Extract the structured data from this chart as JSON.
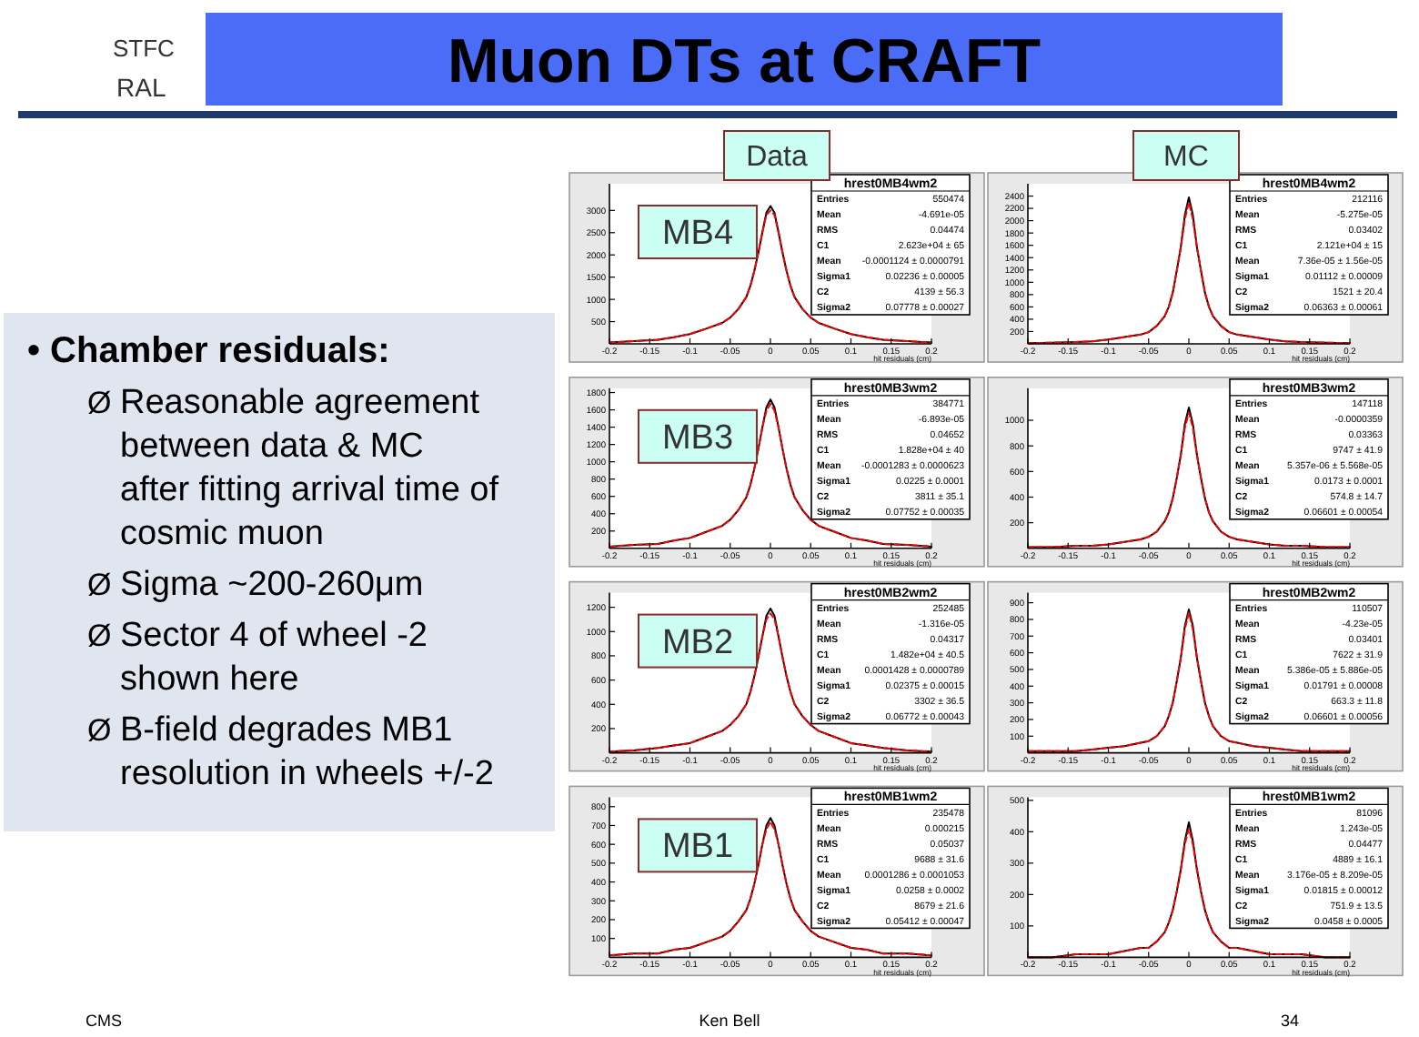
{
  "chart_data": [
    {
      "type": "other",
      "title": "Muon DTs at CRAFT",
      "annotations": [
        "STFC",
        "RAL",
        "• Chamber residuals:",
        "ØReasonable agreement\nbetween data & MC\nafter fitting arrival time of\ncosmic muon",
        "ØSigma ~200-260μm",
        "ØSector 4 of wheel -2\nshown here",
        "ØB-field degrades MB1\nresolution in wheels +/-2",
        "Data",
        "MC",
        "CMS",
        "Ken Bell",
        "34"
      ]
    },
    {
      "type": "line",
      "title": "hrest0MB4wm2",
      "subtitle": "MB4",
      "xlabel": "hit residuals (cm)",
      "x": [
        -0.2,
        -0.17,
        -0.14,
        -0.12,
        -0.1,
        -0.08,
        -0.06,
        -0.05,
        -0.04,
        -0.03,
        -0.025,
        -0.02,
        -0.015,
        -0.01,
        -0.005,
        0,
        0.005,
        0.01,
        0.015,
        0.02,
        0.025,
        0.03,
        0.04,
        0.05,
        0.06,
        0.08,
        0.1,
        0.12,
        0.14,
        0.17,
        0.2
      ],
      "series": [
        {
          "color": "#000000",
          "values": [
            30,
            60,
            90,
            150,
            220,
            340,
            470,
            590,
            780,
            1050,
            1300,
            1640,
            2050,
            2510,
            2950,
            3100,
            2950,
            2510,
            2050,
            1640,
            1300,
            1050,
            780,
            590,
            470,
            340,
            220,
            150,
            90,
            60,
            30
          ]
        },
        {
          "color": "#ff0000",
          "line_style": "dashed",
          "values": [
            30,
            60,
            90,
            150,
            220,
            340,
            470,
            590,
            780,
            1050,
            1300,
            1640,
            2050,
            2510,
            2900,
            3000,
            2900,
            2510,
            2050,
            1640,
            1300,
            1050,
            780,
            590,
            470,
            340,
            220,
            150,
            90,
            60,
            30
          ]
        }
      ],
      "xlim": [
        -0.2,
        0.2
      ],
      "xticks": [
        -0.2,
        -0.15,
        -0.1,
        -0.05,
        0,
        0.05,
        0.1,
        0.15,
        0.2
      ],
      "ylim": [
        0,
        3600
      ],
      "yticks": [
        500,
        1000,
        1500,
        2000,
        2500,
        3000
      ],
      "annotations": [
        "Entries 550474",
        "Mean -4.691e-05",
        "RMS 0.04474",
        "C1 2.623e+04 ± 65",
        "Mean -0.0001124 ± 0.0000791",
        "Sigma1 0.02236 ± 0.00005",
        "C2 4139 ± 56.3",
        "Sigma2 0.07778 ± 0.00027"
      ]
    },
    {
      "type": "line",
      "title": "hrest0MB4wm2",
      "xlabel": "hit residuals (cm)",
      "x": [
        -0.2,
        -0.17,
        -0.14,
        -0.12,
        -0.1,
        -0.08,
        -0.06,
        -0.05,
        -0.04,
        -0.03,
        -0.025,
        -0.02,
        -0.015,
        -0.01,
        -0.005,
        0,
        0.005,
        0.01,
        0.015,
        0.02,
        0.025,
        0.03,
        0.04,
        0.05,
        0.06,
        0.08,
        0.1,
        0.12,
        0.14,
        0.17,
        0.2
      ],
      "series": [
        {
          "color": "#000000",
          "values": [
            10,
            20,
            30,
            40,
            70,
            110,
            150,
            190,
            290,
            450,
            600,
            830,
            1190,
            1570,
            2090,
            2380,
            2090,
            1570,
            1190,
            830,
            600,
            450,
            290,
            190,
            150,
            110,
            70,
            40,
            30,
            20,
            10
          ]
        },
        {
          "color": "#ff0000",
          "line_style": "dashed",
          "values": [
            10,
            20,
            30,
            40,
            70,
            110,
            150,
            190,
            290,
            450,
            600,
            830,
            1190,
            1570,
            2020,
            2300,
            2020,
            1570,
            1190,
            830,
            600,
            450,
            290,
            190,
            150,
            110,
            70,
            40,
            30,
            20,
            10
          ]
        }
      ],
      "xlim": [
        -0.2,
        0.2
      ],
      "xticks": [
        -0.2,
        -0.15,
        -0.1,
        -0.05,
        0,
        0.05,
        0.1,
        0.15,
        0.2
      ],
      "ylim": [
        0,
        2600
      ],
      "yticks": [
        200,
        400,
        600,
        800,
        1000,
        1200,
        1400,
        1600,
        1800,
        2000,
        2200,
        2400
      ],
      "annotations": [
        "Entries 212116",
        "Mean -5.275e-05",
        "RMS 0.03402",
        "C1 2.121e+04 ± 15",
        "Mean 7.36e-05 ± 1.56e-05",
        "Sigma1 0.01112 ± 0.00009",
        "C2 1521 ± 20.4",
        "Sigma2 0.06363 ± 0.00061"
      ]
    },
    {
      "type": "line",
      "title": "hrest0MB3wm2",
      "subtitle": "MB3",
      "xlabel": "hit residuals (cm)",
      "x": [
        -0.2,
        -0.17,
        -0.14,
        -0.12,
        -0.1,
        -0.08,
        -0.06,
        -0.05,
        -0.04,
        -0.03,
        -0.025,
        -0.02,
        -0.015,
        -0.01,
        -0.005,
        0,
        0.005,
        0.01,
        0.015,
        0.02,
        0.025,
        0.03,
        0.04,
        0.05,
        0.06,
        0.08,
        0.1,
        0.12,
        0.14,
        0.17,
        0.2
      ],
      "series": [
        {
          "color": "#000000",
          "values": [
            20,
            40,
            50,
            90,
            120,
            190,
            260,
            330,
            440,
            590,
            730,
            920,
            1150,
            1400,
            1630,
            1720,
            1630,
            1400,
            1150,
            920,
            730,
            590,
            440,
            330,
            260,
            190,
            120,
            90,
            50,
            40,
            20
          ]
        },
        {
          "color": "#ff0000",
          "line_style": "dashed",
          "values": [
            20,
            40,
            50,
            90,
            120,
            190,
            260,
            330,
            440,
            590,
            730,
            920,
            1150,
            1400,
            1590,
            1670,
            1590,
            1400,
            1150,
            920,
            730,
            590,
            440,
            330,
            260,
            190,
            120,
            90,
            50,
            40,
            20
          ]
        }
      ],
      "xlim": [
        -0.2,
        0.2
      ],
      "xticks": [
        -0.2,
        -0.15,
        -0.1,
        -0.05,
        0,
        0.05,
        0.1,
        0.15,
        0.2
      ],
      "ylim": [
        0,
        1850
      ],
      "yticks": [
        200,
        400,
        600,
        800,
        1000,
        1200,
        1400,
        1600,
        1800
      ],
      "annotations": [
        "Entries 384771",
        "Mean -6.893e-05",
        "RMS 0.04652",
        "C1 1.828e+04 ± 40",
        "Mean -0.0001283 ± 0.0000623",
        "Sigma1 0.0225 ± 0.0001",
        "C2 3811 ± 35.1",
        "Sigma2 0.07752 ± 0.00035"
      ]
    },
    {
      "type": "line",
      "title": "hrest0MB3wm2",
      "xlabel": "hit residuals (cm)",
      "x": [
        -0.2,
        -0.17,
        -0.14,
        -0.12,
        -0.1,
        -0.08,
        -0.06,
        -0.05,
        -0.04,
        -0.03,
        -0.025,
        -0.02,
        -0.015,
        -0.01,
        -0.005,
        0,
        0.005,
        0.01,
        0.015,
        0.02,
        0.025,
        0.03,
        0.04,
        0.05,
        0.06,
        0.08,
        0.1,
        0.12,
        0.14,
        0.17,
        0.2
      ],
      "series": [
        {
          "color": "#000000",
          "values": [
            10,
            10,
            20,
            20,
            30,
            50,
            70,
            90,
            130,
            210,
            280,
            390,
            550,
            730,
            970,
            1100,
            970,
            730,
            550,
            390,
            280,
            210,
            130,
            90,
            70,
            50,
            30,
            20,
            20,
            10,
            10
          ]
        },
        {
          "color": "#ff0000",
          "line_style": "dashed",
          "values": [
            10,
            10,
            20,
            20,
            30,
            50,
            70,
            90,
            130,
            210,
            280,
            390,
            550,
            730,
            940,
            1060,
            940,
            730,
            550,
            390,
            280,
            210,
            130,
            90,
            70,
            50,
            30,
            20,
            20,
            10,
            10
          ]
        }
      ],
      "xlim": [
        -0.2,
        0.2
      ],
      "xticks": [
        -0.2,
        -0.15,
        -0.1,
        -0.05,
        0,
        0.05,
        0.1,
        0.15,
        0.2
      ],
      "ylim": [
        0,
        1250
      ],
      "yticks": [
        200,
        400,
        600,
        800,
        1000
      ],
      "annotations": [
        "Entries 147118",
        "Mean -0.0000359",
        "RMS 0.03363",
        "C1 9747 ± 41.9",
        "Mean 5.357e-06 ± 5.568e-05",
        "Sigma1 0.0173 ± 0.0001",
        "C2 574.8 ± 14.7",
        "Sigma2 0.06601 ± 0.00054"
      ]
    },
    {
      "type": "line",
      "title": "hrest0MB2wm2",
      "subtitle": "MB2",
      "xlabel": "hit residuals (cm)",
      "x": [
        -0.2,
        -0.17,
        -0.14,
        -0.12,
        -0.1,
        -0.08,
        -0.06,
        -0.05,
        -0.04,
        -0.03,
        -0.025,
        -0.02,
        -0.015,
        -0.01,
        -0.005,
        0,
        0.005,
        0.01,
        0.015,
        0.02,
        0.025,
        0.03,
        0.04,
        0.05,
        0.06,
        0.08,
        0.1,
        0.12,
        0.14,
        0.17,
        0.2
      ],
      "series": [
        {
          "color": "#000000",
          "values": [
            10,
            20,
            40,
            60,
            80,
            130,
            180,
            230,
            300,
            400,
            500,
            630,
            790,
            960,
            1130,
            1190,
            1130,
            960,
            790,
            630,
            500,
            400,
            300,
            230,
            180,
            130,
            80,
            60,
            40,
            20,
            10
          ]
        },
        {
          "color": "#ff0000",
          "line_style": "dashed",
          "values": [
            10,
            20,
            40,
            60,
            80,
            130,
            180,
            230,
            300,
            400,
            500,
            630,
            790,
            960,
            1100,
            1150,
            1100,
            960,
            790,
            630,
            500,
            400,
            300,
            230,
            180,
            130,
            80,
            60,
            40,
            20,
            10
          ]
        }
      ],
      "xlim": [
        -0.2,
        0.2
      ],
      "xticks": [
        -0.2,
        -0.15,
        -0.1,
        -0.05,
        0,
        0.05,
        0.1,
        0.15,
        0.2
      ],
      "ylim": [
        0,
        1320
      ],
      "yticks": [
        200,
        400,
        600,
        800,
        1000,
        1200
      ],
      "annotations": [
        "Entries 252485",
        "Mean -1.316e-05",
        "RMS 0.04317",
        "C1 1.482e+04 ± 40.5",
        "Mean 0.0001428 ± 0.0000789",
        "Sigma1 0.02375 ± 0.00015",
        "C2 3302 ± 36.5",
        "Sigma2 0.06772 ± 0.00043"
      ]
    },
    {
      "type": "line",
      "title": "hrest0MB2wm2",
      "xlabel": "hit residuals (cm)",
      "x": [
        -0.2,
        -0.17,
        -0.14,
        -0.12,
        -0.1,
        -0.08,
        -0.06,
        -0.05,
        -0.04,
        -0.03,
        -0.025,
        -0.02,
        -0.015,
        -0.01,
        -0.005,
        0,
        0.005,
        0.01,
        0.015,
        0.02,
        0.025,
        0.03,
        0.04,
        0.05,
        0.06,
        0.08,
        0.1,
        0.12,
        0.14,
        0.17,
        0.2
      ],
      "series": [
        {
          "color": "#000000",
          "values": [
            10,
            10,
            10,
            20,
            30,
            40,
            60,
            70,
            100,
            160,
            220,
            300,
            430,
            570,
            760,
            860,
            760,
            570,
            430,
            300,
            220,
            160,
            100,
            70,
            60,
            40,
            30,
            20,
            10,
            10,
            10
          ]
        },
        {
          "color": "#ff0000",
          "line_style": "dashed",
          "values": [
            10,
            10,
            10,
            20,
            30,
            40,
            60,
            70,
            100,
            160,
            220,
            300,
            430,
            570,
            740,
            840,
            740,
            570,
            430,
            300,
            220,
            160,
            100,
            70,
            60,
            40,
            30,
            20,
            10,
            10,
            10
          ]
        }
      ],
      "xlim": [
        -0.2,
        0.2
      ],
      "xticks": [
        -0.2,
        -0.15,
        -0.1,
        -0.05,
        0,
        0.05,
        0.1,
        0.15,
        0.2
      ],
      "ylim": [
        0,
        960
      ],
      "yticks": [
        100,
        200,
        300,
        400,
        500,
        600,
        700,
        800,
        900
      ],
      "annotations": [
        "Entries 110507",
        "Mean -4.23e-05",
        "RMS 0.03401",
        "C1 7622 ± 31.9",
        "Mean 5.386e-05 ± 5.886e-05",
        "Sigma1 0.01791 ± 0.00008",
        "C2 663.3 ± 11.8",
        "Sigma2 0.06601 ± 0.00056"
      ]
    },
    {
      "type": "line",
      "title": "hrest0MB1wm2",
      "subtitle": "MB1",
      "xlabel": "hit residuals (cm)",
      "x": [
        -0.2,
        -0.17,
        -0.14,
        -0.12,
        -0.1,
        -0.08,
        -0.06,
        -0.05,
        -0.04,
        -0.03,
        -0.025,
        -0.02,
        -0.015,
        -0.01,
        -0.005,
        0,
        0.005,
        0.01,
        0.015,
        0.02,
        0.025,
        0.03,
        0.04,
        0.05,
        0.06,
        0.08,
        0.1,
        0.12,
        0.14,
        0.17,
        0.2
      ],
      "series": [
        {
          "color": "#000000",
          "values": [
            10,
            20,
            20,
            40,
            50,
            80,
            110,
            140,
            190,
            250,
            310,
            390,
            490,
            600,
            700,
            740,
            700,
            600,
            490,
            390,
            310,
            250,
            190,
            140,
            110,
            80,
            50,
            40,
            20,
            20,
            10
          ]
        },
        {
          "color": "#ff0000",
          "line_style": "dashed",
          "values": [
            10,
            20,
            20,
            40,
            50,
            80,
            110,
            140,
            190,
            250,
            310,
            390,
            490,
            600,
            680,
            720,
            680,
            600,
            490,
            390,
            310,
            250,
            190,
            140,
            110,
            80,
            50,
            40,
            20,
            20,
            10
          ]
        }
      ],
      "xlim": [
        -0.2,
        0.2
      ],
      "xticks": [
        -0.2,
        -0.15,
        -0.1,
        -0.05,
        0,
        0.05,
        0.1,
        0.15,
        0.2
      ],
      "ylim": [
        0,
        850
      ],
      "yticks": [
        100,
        200,
        300,
        400,
        500,
        600,
        700,
        800
      ],
      "annotations": [
        "Entries 235478",
        "Mean 0.000215",
        "RMS 0.05037",
        "C1 9688 ± 31.6",
        "Mean 0.0001286 ± 0.0001053",
        "Sigma1 0.0258 ± 0.0002",
        "C2 8679 ± 21.6",
        "Sigma2 0.05412 ± 0.00047"
      ]
    },
    {
      "type": "line",
      "title": "hrest0MB1wm2",
      "xlabel": "hit residuals (cm)",
      "x": [
        -0.2,
        -0.17,
        -0.14,
        -0.12,
        -0.1,
        -0.08,
        -0.06,
        -0.05,
        -0.04,
        -0.03,
        -0.025,
        -0.02,
        -0.015,
        -0.01,
        -0.005,
        0,
        0.005,
        0.01,
        0.015,
        0.02,
        0.025,
        0.03,
        0.04,
        0.05,
        0.06,
        0.08,
        0.1,
        0.12,
        0.14,
        0.17,
        0.2
      ],
      "series": [
        {
          "color": "#000000",
          "values": [
            0,
            0,
            10,
            10,
            10,
            20,
            30,
            30,
            50,
            80,
            110,
            150,
            210,
            280,
            370,
            430,
            370,
            280,
            210,
            150,
            110,
            80,
            50,
            30,
            30,
            20,
            10,
            10,
            10,
            0,
            0
          ]
        },
        {
          "color": "#ff0000",
          "line_style": "dashed",
          "values": [
            0,
            0,
            10,
            10,
            10,
            20,
            30,
            30,
            50,
            80,
            110,
            150,
            210,
            280,
            360,
            410,
            360,
            280,
            210,
            150,
            110,
            80,
            50,
            30,
            30,
            20,
            10,
            10,
            10,
            0,
            0
          ]
        }
      ],
      "xlim": [
        -0.2,
        0.2
      ],
      "xticks": [
        -0.2,
        -0.15,
        -0.1,
        -0.05,
        0,
        0.05,
        0.1,
        0.15,
        0.2
      ],
      "ylim": [
        0,
        510
      ],
      "yticks": [
        100,
        200,
        300,
        400,
        500
      ],
      "annotations": [
        "Entries 81096",
        "Mean 1.243e-05",
        "RMS 0.04477",
        "C1 4889 ± 16.1",
        "Mean 3.176e-05 ± 8.209e-05",
        "Sigma1 0.01815 ± 0.00012",
        "C2 751.9 ± 13.5",
        "Sigma2 0.0458 ± 0.0005"
      ]
    }
  ]
}
